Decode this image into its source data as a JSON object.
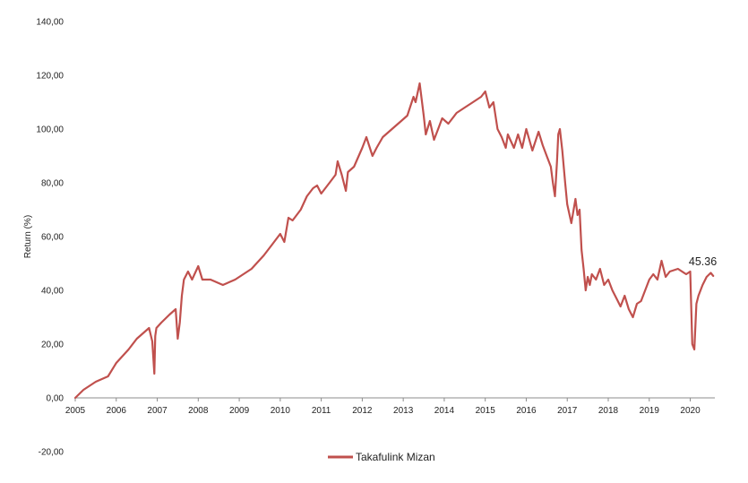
{
  "chart_data": {
    "type": "line",
    "title": "",
    "xlabel": "",
    "ylabel": "Return (%)",
    "xlim": [
      2005,
      2020.6
    ],
    "ylim": [
      -20,
      140
    ],
    "y_ticks": [
      -20,
      0,
      20,
      40,
      60,
      80,
      100,
      120,
      140
    ],
    "y_tick_labels": [
      "-20,00",
      "0,00",
      "20,00",
      "40,00",
      "60,00",
      "80,00",
      "100,00",
      "120,00",
      "140,00"
    ],
    "x_ticks": [
      2005,
      2006,
      2007,
      2008,
      2009,
      2010,
      2011,
      2012,
      2013,
      2014,
      2015,
      2016,
      2017,
      2018,
      2019,
      2020
    ],
    "x_tick_labels": [
      "2005",
      "2006",
      "2007",
      "2008",
      "2009",
      "2010",
      "2011",
      "2012",
      "2013",
      "2014",
      "2015",
      "2016",
      "2017",
      "2018",
      "2019",
      "2020"
    ],
    "grid": false,
    "legend_position": "bottom",
    "end_label": "45.36",
    "series": [
      {
        "name": "Takafulink Mizan",
        "color": "#c0504d",
        "x": [
          2005.0,
          2005.2,
          2005.5,
          2005.8,
          2006.0,
          2006.3,
          2006.5,
          2006.8,
          2006.88,
          2006.93,
          2006.95,
          2006.98,
          2007.1,
          2007.3,
          2007.45,
          2007.5,
          2007.55,
          2007.6,
          2007.65,
          2007.75,
          2007.85,
          2008.0,
          2008.1,
          2008.3,
          2008.6,
          2008.9,
          2009.0,
          2009.3,
          2009.6,
          2009.8,
          2010.0,
          2010.1,
          2010.2,
          2010.3,
          2010.5,
          2010.65,
          2010.8,
          2010.9,
          2011.0,
          2011.2,
          2011.35,
          2011.4,
          2011.5,
          2011.6,
          2011.65,
          2011.8,
          2012.0,
          2012.1,
          2012.25,
          2012.35,
          2012.5,
          2012.8,
          2012.95,
          2013.1,
          2013.25,
          2013.3,
          2013.4,
          2013.5,
          2013.55,
          2013.65,
          2013.75,
          2013.85,
          2013.95,
          2014.1,
          2014.3,
          2014.5,
          2014.7,
          2014.9,
          2015.0,
          2015.1,
          2015.2,
          2015.3,
          2015.4,
          2015.5,
          2015.55,
          2015.7,
          2015.8,
          2015.9,
          2016.0,
          2016.15,
          2016.3,
          2016.4,
          2016.5,
          2016.6,
          2016.65,
          2016.7,
          2016.75,
          2016.78,
          2016.82,
          2016.88,
          2016.95,
          2017.0,
          2017.1,
          2017.2,
          2017.25,
          2017.3,
          2017.35,
          2017.4,
          2017.45,
          2017.5,
          2017.55,
          2017.6,
          2017.7,
          2017.8,
          2017.9,
          2018.0,
          2018.1,
          2018.2,
          2018.3,
          2018.4,
          2018.5,
          2018.6,
          2018.7,
          2018.8,
          2018.9,
          2019.0,
          2019.1,
          2019.2,
          2019.3,
          2019.4,
          2019.5,
          2019.7,
          2019.9,
          2020.0,
          2020.05,
          2020.1,
          2020.15,
          2020.2,
          2020.3,
          2020.4,
          2020.5,
          2020.56
        ],
        "y": [
          0,
          3,
          6,
          8,
          13,
          18,
          22,
          26,
          21,
          9,
          23,
          26,
          28,
          31,
          33,
          22,
          28,
          38,
          44,
          47,
          44,
          49,
          44,
          44,
          42,
          44,
          45,
          48,
          53,
          57,
          61,
          58,
          67,
          66,
          70,
          75,
          78,
          79,
          76,
          80,
          83,
          88,
          83,
          77,
          84,
          86,
          93,
          97,
          90,
          93,
          97,
          101,
          103,
          105,
          112,
          110,
          117,
          105,
          98,
          103,
          96,
          100,
          104,
          102,
          106,
          108,
          110,
          112,
          114,
          108,
          110,
          100,
          97,
          93,
          98,
          93,
          98,
          93,
          100,
          92,
          99,
          94,
          90,
          86,
          80,
          75,
          88,
          98,
          100,
          92,
          80,
          72,
          65,
          74,
          68,
          70,
          55,
          48,
          40,
          45,
          42,
          46,
          44,
          48,
          42,
          44,
          40,
          37,
          34,
          38,
          33,
          30,
          35,
          36,
          40,
          44,
          46,
          44,
          51,
          45,
          47,
          48,
          46,
          47,
          20,
          18,
          35,
          38,
          42,
          45,
          46.5,
          45.36
        ]
      }
    ]
  }
}
